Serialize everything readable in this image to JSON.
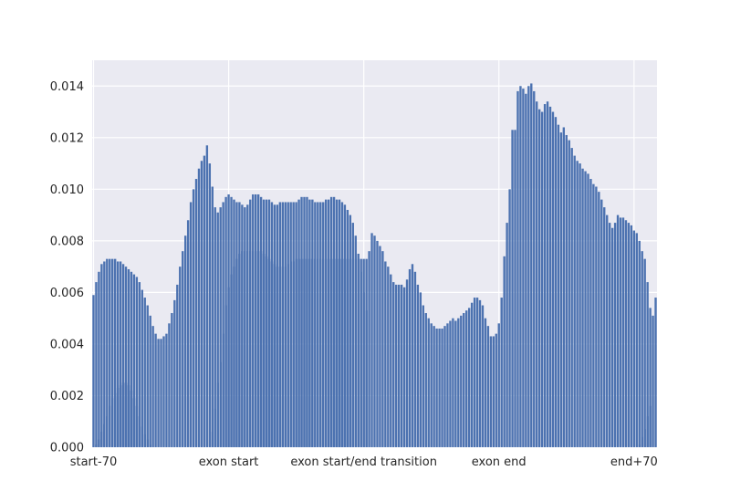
{
  "chart_data": {
    "type": "bar",
    "title": "",
    "xlabel": "",
    "ylabel": "",
    "ylim": [
      0,
      0.015
    ],
    "yticks": [
      "0.000",
      "0.002",
      "0.004",
      "0.006",
      "0.008",
      "0.010",
      "0.012",
      "0.014"
    ],
    "ytick_values": [
      0,
      0.002,
      0.004,
      0.006,
      0.008,
      0.01,
      0.012,
      0.014
    ],
    "xticks": [
      "start-70",
      "exon start",
      "exon start/end transition",
      "exon end",
      "end+70"
    ],
    "xtick_positions": [
      0,
      50,
      100,
      150,
      200
    ],
    "grid": true,
    "colors": {
      "bar": "#4c72b0",
      "background": "#eaeaf2",
      "grid": "#ffffff",
      "text": "#262626"
    },
    "bar_width": 0.8,
    "series": [
      {
        "values": [
          0.0059,
          0.0064,
          0.0068,
          0.0071,
          0.0072,
          0.0073,
          0.0073,
          0.0073,
          0.0073,
          0.0072,
          0.0072,
          0.0071,
          0.007,
          0.0069,
          0.0068,
          0.0067,
          0.0066,
          0.0064,
          0.0061,
          0.0058,
          0.0055,
          0.0051,
          0.0047,
          0.0044,
          0.0042,
          0.0042,
          0.0043,
          0.0044,
          0.0048,
          0.0052,
          0.0057,
          0.0063,
          0.007,
          0.0076,
          0.0082,
          0.0088,
          0.0095,
          0.01,
          0.0104,
          0.0108,
          0.0111,
          0.0113,
          0.0117,
          0.011,
          0.0101,
          0.0093,
          0.0091,
          0.0093,
          0.0095,
          0.0097,
          0.0098,
          0.0097,
          0.0096,
          0.0095,
          0.0095,
          0.0094,
          0.0093,
          0.0094,
          0.0096,
          0.0098,
          0.0098,
          0.0098,
          0.0097,
          0.0096,
          0.0096,
          0.0096,
          0.0095,
          0.0094,
          0.0094,
          0.0095,
          0.0095,
          0.0095,
          0.0095,
          0.0095,
          0.0095,
          0.0095,
          0.0096,
          0.0097,
          0.0097,
          0.0097,
          0.0096,
          0.0096,
          0.0095,
          0.0095,
          0.0095,
          0.0095,
          0.0096,
          0.0096,
          0.0097,
          0.0097,
          0.0096,
          0.0096,
          0.0095,
          0.0094,
          0.0092,
          0.009,
          0.0087,
          0.0082,
          0.0075,
          0.0068,
          0.006,
          0.0053,
          0.0076,
          0.0083,
          0.0082,
          0.008,
          0.0078,
          0.0076,
          0.0072,
          0.007,
          0.0067,
          0.0064,
          0.0063,
          0.0063,
          0.0063,
          0.0062,
          0.0065,
          0.0069,
          0.0071,
          0.0068,
          0.0063,
          0.006,
          0.0055,
          0.0052,
          0.005,
          0.0048,
          0.0047,
          0.0046,
          0.0046,
          0.0046,
          0.0047,
          0.0048,
          0.0049,
          0.005,
          0.0049,
          0.005,
          0.0051,
          0.0052,
          0.0053,
          0.0054,
          0.0056,
          0.0058,
          0.0058,
          0.0057,
          0.0055,
          0.005,
          0.0047,
          0.0043,
          0.0043,
          0.0044,
          0.0048,
          0.0058,
          0.0074,
          0.0087,
          0.01,
          0.0123,
          0.0123,
          0.0138,
          0.014,
          0.0139,
          0.0137,
          0.014,
          0.0141,
          0.0138,
          0.0134,
          0.0131,
          0.013,
          0.0133,
          0.0134,
          0.0132,
          0.013,
          0.0128,
          0.0125,
          0.0122,
          0.0124,
          0.0121,
          0.0119,
          0.0116,
          0.0113,
          0.0111,
          0.011,
          0.0108,
          0.0107,
          0.0106,
          0.0104,
          0.0102,
          0.0101,
          0.0099,
          0.0096,
          0.0093,
          0.009,
          0.0087,
          0.0085,
          0.0087,
          0.009,
          0.0089,
          0.0089,
          0.0088,
          0.0087,
          0.0086,
          0.0084,
          0.0083,
          0.008,
          0.0076,
          0.0073,
          0.0064,
          0.0054,
          0.0051,
          0.0058
        ]
      },
      {
        "values": [
          0.0,
          0.0001,
          0.0003,
          0.0006,
          0.0009,
          0.0012,
          0.0016,
          0.0019,
          0.0021,
          0.0023,
          0.0024,
          0.0025,
          0.0025,
          0.0024,
          0.0022,
          0.0019,
          0.0016,
          0.0012,
          0.0008,
          0.0005,
          0.0003,
          0.0001,
          0.0,
          0.0,
          0.0,
          0.0,
          0.0,
          0.0,
          0.0,
          0.0,
          0.0,
          0.0,
          0.0,
          0.0,
          0.0,
          0.0,
          0.0,
          0.0,
          0.0,
          0.0,
          0.0,
          0.0,
          0.0,
          0.0,
          0.0006,
          0.0015,
          0.0025,
          0.0033,
          0.0044,
          0.0055,
          0.0062,
          0.0067,
          0.007,
          0.0073,
          0.0075,
          0.0076,
          0.0076,
          0.0076,
          0.0076,
          0.0076,
          0.0076,
          0.0076,
          0.0076,
          0.0075,
          0.0074,
          0.0073,
          0.0072,
          0.0071,
          0.007,
          0.007,
          0.007,
          0.007,
          0.0071,
          0.0072,
          0.0072,
          0.0073,
          0.0073,
          0.0073,
          0.0073,
          0.0073,
          0.0073,
          0.0073,
          0.0073,
          0.0073,
          0.0073,
          0.0073,
          0.0073,
          0.0073,
          0.0073,
          0.0073,
          0.0073,
          0.0073,
          0.0073,
          0.0073,
          0.0073,
          0.0073,
          0.0073,
          0.0073,
          0.0073,
          0.0073,
          0.0073,
          0.0073,
          0.0,
          0.0,
          0.0,
          0.0,
          0.0,
          0.0,
          0.0,
          0.0,
          0.0,
          0.0,
          0.0,
          0.0,
          0.0,
          0.0,
          0.0,
          0.0,
          0.0,
          0.0,
          0.0,
          0.0,
          0.0,
          0.0,
          0.0,
          0.0,
          0.0,
          0.0,
          0.0,
          0.0,
          0.0,
          0.0,
          0.0,
          0.0,
          0.0,
          0.0,
          0.0,
          0.0,
          0.0,
          0.0,
          0.0,
          0.0,
          0.0,
          0.0,
          0.0,
          0.0,
          0.0,
          0.0,
          0.0,
          0.0,
          0.0,
          0.0,
          0.0,
          0.0,
          0.0,
          0.0,
          0.0,
          0.0,
          0.0,
          0.0,
          0.0,
          0.0,
          0.0,
          0.0,
          0.0,
          0.0,
          0.0,
          0.0,
          0.0,
          0.0,
          0.0,
          0.0,
          0.0,
          0.0,
          0.0,
          0.0,
          0.0,
          0.0,
          0.0,
          0.0,
          0.0,
          0.0,
          0.0,
          0.0,
          0.0,
          0.0,
          0.0,
          0.0,
          0.0,
          0.0,
          0.0,
          0.0,
          0.0,
          0.0,
          0.0,
          0.0,
          0.0,
          0.0,
          0.0,
          0.0,
          0.0,
          0.0,
          0.0001,
          0.0004,
          0.0007,
          0.0012,
          0.0016
        ]
      }
    ]
  }
}
